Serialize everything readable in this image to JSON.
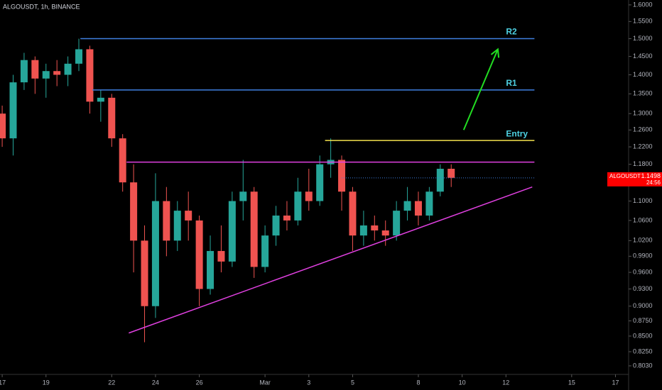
{
  "chart_data": {
    "type": "candlestick",
    "title": "ALGOUSDT, 1h, BINANCE",
    "log_scale": true,
    "up_color": "#26a69a",
    "down_color": "#ef5350",
    "x": [
      0,
      0.5,
      1,
      1.5,
      2,
      2.5,
      3,
      3.5,
      4,
      4.5,
      5,
      5.5,
      6,
      6.5,
      7,
      7.5,
      8,
      8.5,
      9,
      9.5,
      10,
      10.5,
      11,
      11.5,
      12,
      12.5,
      13,
      13.5,
      14,
      14.5,
      15,
      15.5,
      16,
      16.5,
      17,
      17.5,
      18,
      18.5,
      19,
      19.5,
      20,
      20.5
    ],
    "open": [
      1.3,
      1.24,
      1.38,
      1.44,
      1.39,
      1.41,
      1.4,
      1.43,
      1.47,
      1.33,
      1.34,
      1.24,
      1.14,
      1.02,
      0.9,
      1.1,
      1.02,
      1.08,
      1.06,
      0.93,
      1.0,
      0.98,
      1.1,
      1.12,
      0.97,
      1.03,
      1.07,
      1.06,
      1.12,
      1.1,
      1.18,
      1.19,
      1.12,
      1.03,
      1.05,
      1.04,
      1.03,
      1.08,
      1.1,
      1.07,
      1.12,
      1.17
    ],
    "high": [
      1.32,
      1.4,
      1.46,
      1.45,
      1.43,
      1.44,
      1.45,
      1.5,
      1.48,
      1.36,
      1.35,
      1.25,
      1.18,
      1.05,
      1.16,
      1.13,
      1.1,
      1.12,
      1.07,
      1.03,
      1.05,
      1.12,
      1.19,
      1.13,
      1.05,
      1.09,
      1.1,
      1.15,
      1.17,
      1.2,
      1.24,
      1.2,
      1.13,
      1.08,
      1.07,
      1.06,
      1.1,
      1.13,
      1.12,
      1.13,
      1.18,
      1.18
    ],
    "low": [
      1.22,
      1.2,
      1.36,
      1.35,
      1.34,
      1.37,
      1.37,
      1.41,
      1.3,
      1.28,
      1.22,
      1.12,
      0.96,
      0.84,
      0.88,
      0.99,
      1.0,
      1.02,
      0.9,
      0.92,
      0.96,
      0.97,
      1.06,
      0.95,
      0.96,
      1.01,
      1.04,
      1.05,
      1.08,
      1.09,
      1.15,
      1.08,
      1.0,
      1.01,
      1.02,
      1.01,
      1.02,
      1.06,
      1.05,
      1.06,
      1.11,
      1.13
    ],
    "close": [
      1.24,
      1.38,
      1.44,
      1.39,
      1.41,
      1.4,
      1.43,
      1.47,
      1.33,
      1.34,
      1.24,
      1.14,
      1.02,
      0.9,
      1.1,
      1.02,
      1.08,
      1.06,
      0.93,
      1.0,
      0.98,
      1.1,
      1.12,
      0.97,
      1.03,
      1.07,
      1.06,
      1.12,
      1.1,
      1.18,
      1.19,
      1.12,
      1.03,
      1.05,
      1.04,
      1.03,
      1.08,
      1.1,
      1.07,
      1.12,
      1.17,
      1.15
    ],
    "xlim": [
      -0.1,
      28.6
    ],
    "ylim": [
      0.79,
      1.615
    ],
    "xticks": [
      {
        "value": 0,
        "label": "17"
      },
      {
        "value": 2,
        "label": "19"
      },
      {
        "value": 5,
        "label": "22"
      },
      {
        "value": 7,
        "label": "24"
      },
      {
        "value": 9,
        "label": "26"
      },
      {
        "value": 12,
        "label": "Mar"
      },
      {
        "value": 14,
        "label": "3"
      },
      {
        "value": 16,
        "label": "5"
      },
      {
        "value": 19,
        "label": "8"
      },
      {
        "value": 21,
        "label": "10"
      },
      {
        "value": 23,
        "label": "12"
      },
      {
        "value": 26,
        "label": "15"
      },
      {
        "value": 28,
        "label": "17"
      }
    ],
    "yticks": [
      {
        "value": 1.6,
        "label": "1.6000"
      },
      {
        "value": 1.55,
        "label": "1.5500"
      },
      {
        "value": 1.5,
        "label": "1.5000"
      },
      {
        "value": 1.45,
        "label": "1.4500"
      },
      {
        "value": 1.4,
        "label": "1.4000"
      },
      {
        "value": 1.35,
        "label": "1.3500"
      },
      {
        "value": 1.3,
        "label": "1.3000"
      },
      {
        "value": 1.26,
        "label": "1.2600"
      },
      {
        "value": 1.22,
        "label": "1.2200"
      },
      {
        "value": 1.18,
        "label": "1.1800"
      },
      {
        "value": 1.1,
        "label": "1.1000"
      },
      {
        "value": 1.06,
        "label": "1.0600"
      },
      {
        "value": 1.02,
        "label": "1.0200"
      },
      {
        "value": 0.99,
        "label": "0.9900"
      },
      {
        "value": 0.96,
        "label": "0.9600"
      },
      {
        "value": 0.93,
        "label": "0.9300"
      },
      {
        "value": 0.9,
        "label": "0.9000"
      },
      {
        "value": 0.875,
        "label": "0.8750"
      },
      {
        "value": 0.85,
        "label": "0.8500"
      },
      {
        "value": 0.825,
        "label": "0.8250"
      },
      {
        "value": 0.803,
        "label": "0.8030"
      }
    ],
    "levels": [
      {
        "label": "R2",
        "value": 1.5,
        "start": 3.57,
        "end": 24.3,
        "color": "#3f7fe0"
      },
      {
        "label": "R1",
        "value": 1.36,
        "start": 4.12,
        "end": 24.3,
        "color": "#3f7fe0"
      },
      {
        "label": "Entry",
        "value": 1.235,
        "start": 14.74,
        "end": 24.3,
        "color": "#f2e14c"
      },
      {
        "value": 1.185,
        "start": 5.68,
        "end": 24.3,
        "color": "#e040e0"
      }
    ],
    "trendline": {
      "x": [
        5.78,
        24.2
      ],
      "y": [
        0.855,
        1.13
      ],
      "color": "#e040e0"
    },
    "arrow": {
      "x": [
        21.07,
        22.63
      ],
      "y": [
        1.26,
        1.47
      ],
      "color": "#22dd22"
    },
    "current_price": {
      "symbol": "ALGOUSDT",
      "value": 1.1498,
      "countdown": "24:56",
      "start": 15.5,
      "end": 24.3,
      "color": "#ff0000"
    }
  }
}
